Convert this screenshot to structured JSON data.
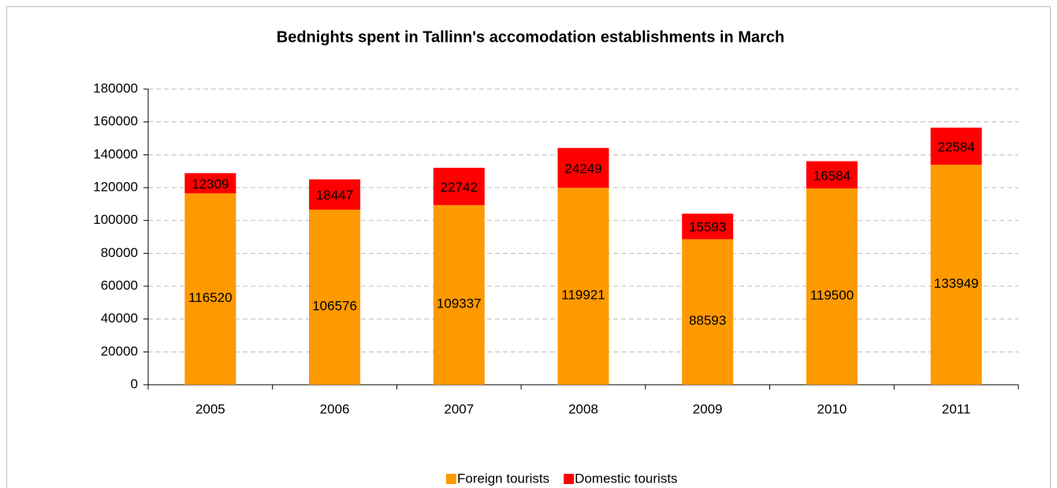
{
  "chart_data": {
    "type": "bar",
    "stacked": true,
    "title": "Bednights spent in Tallinn's accomodation establishments in March",
    "categories": [
      "2005",
      "2006",
      "2007",
      "2008",
      "2009",
      "2010",
      "2011"
    ],
    "series": [
      {
        "name": "Foreign tourists",
        "color": "#ff9900",
        "values": [
          116520,
          106576,
          109337,
          119921,
          88593,
          119500,
          133949
        ]
      },
      {
        "name": "Domestic tourists",
        "color": "#ff0000",
        "values": [
          12309,
          18447,
          22742,
          24249,
          15593,
          16584,
          22584
        ]
      }
    ],
    "ylim": [
      0,
      180000
    ],
    "yticks": [
      0,
      20000,
      40000,
      60000,
      80000,
      100000,
      120000,
      140000,
      160000,
      180000
    ],
    "grid": true,
    "legend": "bottom"
  }
}
